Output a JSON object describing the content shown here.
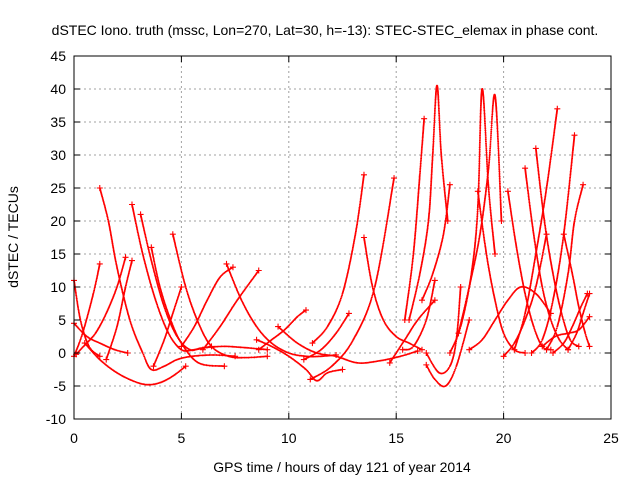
{
  "chart_data": {
    "type": "scatter",
    "title": "dSTEC Iono. truth (mssc, Lon=270, Lat=30, h=-13): STEC-STEC_elemax in phase cont.",
    "xlabel": "GPS time / hours of day 121 of year 2014",
    "ylabel": "dSTEC  / TECUs",
    "xlim": [
      0,
      25
    ],
    "ylim": [
      -10,
      45
    ],
    "xticks": [
      "0",
      "5",
      "10",
      "15",
      "20",
      "25"
    ],
    "yticks": [
      "-10",
      "-5",
      "0",
      "5",
      "10",
      "15",
      "20",
      "25",
      "30",
      "35",
      "40",
      "45"
    ],
    "grid": true,
    "marker": "+",
    "color": "#ff0000",
    "arcs": [
      {
        "x": [
          0.0,
          0.3,
          0.7,
          1.2
        ],
        "y": [
          11,
          5,
          1,
          -0.5
        ]
      },
      {
        "x": [
          0.0,
          0.6,
          1.2,
          1.9,
          2.5
        ],
        "y": [
          4.5,
          2.5,
          1.5,
          0.5,
          0
        ]
      },
      {
        "x": [
          0.0,
          0.4,
          0.9,
          1.2
        ],
        "y": [
          -0.5,
          3,
          9,
          13.5
        ]
      },
      {
        "x": [
          0.1,
          0.5,
          1.0,
          1.5,
          2.0,
          2.4
        ],
        "y": [
          -0.2,
          1.2,
          3,
          6,
          10,
          14.5
        ]
      },
      {
        "x": [
          1.2,
          1.6,
          2.0,
          2.6,
          3.2,
          3.6,
          4.2,
          4.8,
          5.5,
          6.5,
          7.5
        ],
        "y": [
          25,
          20,
          13,
          5,
          0,
          -2.5,
          -2,
          -1,
          -0.5,
          -0.3,
          -0.5
        ]
      },
      {
        "x": [
          1.5,
          2.0,
          2.4,
          2.7
        ],
        "y": [
          -1,
          4,
          10,
          14
        ]
      },
      {
        "x": [
          0.5,
          1.2,
          2.0,
          2.8,
          3.4,
          4.0,
          4.6,
          5.2
        ],
        "y": [
          1.5,
          -1,
          -3,
          -4.3,
          -4.8,
          -4.5,
          -3.5,
          -2
        ]
      },
      {
        "x": [
          2.7,
          3.2,
          3.8,
          4.4,
          5.0,
          5.6,
          6.4
        ],
        "y": [
          22.5,
          15,
          8,
          3,
          0.5,
          0.5,
          1
        ]
      },
      {
        "x": [
          3.1,
          3.6,
          4.2,
          4.8,
          5.4,
          6.0,
          7.0,
          8.0,
          9.0
        ],
        "y": [
          21,
          14,
          7,
          2.5,
          0.5,
          0.8,
          1,
          0.8,
          0.5
        ]
      },
      {
        "x": [
          3.6,
          4.0,
          4.5,
          5.0,
          5.8,
          7.0
        ],
        "y": [
          16,
          10,
          5,
          1.5,
          -1.5,
          -2
        ]
      },
      {
        "x": [
          4.6,
          5.2,
          5.8,
          6.4,
          7.2,
          8.0,
          9.0
        ],
        "y": [
          18,
          10,
          4.5,
          1,
          -0.5,
          -0.7,
          -0.5
        ]
      },
      {
        "x": [
          3.7,
          4.2,
          4.6,
          5.0
        ],
        "y": [
          -2,
          2,
          6,
          10
        ]
      },
      {
        "x": [
          5.0,
          5.6,
          6.2,
          6.8,
          7.4
        ],
        "y": [
          1,
          4,
          8,
          11.5,
          13
        ]
      },
      {
        "x": [
          7.1,
          7.8,
          8.5,
          9.2,
          10.0,
          10.8,
          11.5,
          12.2
        ],
        "y": [
          13.5,
          8,
          4,
          1.5,
          0,
          -0.5,
          -0.5,
          -0.3
        ]
      },
      {
        "x": [
          6.0,
          6.8,
          7.6,
          8.6
        ],
        "y": [
          0.5,
          4,
          8,
          12.5
        ]
      },
      {
        "x": [
          8.5,
          9.2,
          10.0,
          10.8,
          11.3,
          11.8,
          12.5
        ],
        "y": [
          2,
          1,
          -0.5,
          -2.5,
          -4.2,
          -3,
          -2.5
        ]
      },
      {
        "x": [
          8.6,
          9.2,
          9.8,
          10.4,
          10.8
        ],
        "y": [
          0.5,
          2,
          3.5,
          5.5,
          6.5
        ]
      },
      {
        "x": [
          9.5,
          10.4,
          11.3,
          12.2,
          13.2,
          14.2,
          15.2,
          16.0
        ],
        "y": [
          4,
          1.5,
          0,
          -0.5,
          -1.5,
          -1.2,
          -0.5,
          0.3
        ]
      },
      {
        "x": [
          11.1,
          11.8,
          12.5,
          13.1,
          13.5
        ],
        "y": [
          1.5,
          4,
          9,
          18,
          27
        ]
      },
      {
        "x": [
          11.0,
          12.0,
          13.0,
          14.0,
          14.9
        ],
        "y": [
          -4,
          -2,
          2,
          10,
          26.5
        ]
      },
      {
        "x": [
          10.7,
          11.5,
          12.2,
          12.8
        ],
        "y": [
          -1,
          0.5,
          3,
          6
        ]
      },
      {
        "x": [
          13.5,
          13.9,
          14.4,
          15.0,
          15.6,
          16.2
        ],
        "y": [
          17.5,
          10,
          5,
          2.5,
          1.5,
          0.5
        ]
      },
      {
        "x": [
          14.7,
          15.4,
          16.0,
          16.8
        ],
        "y": [
          -1.5,
          2,
          5,
          8
        ]
      },
      {
        "x": [
          15.4,
          15.8,
          16.1,
          16.3
        ],
        "y": [
          5,
          15,
          27,
          35.5
        ]
      },
      {
        "x": [
          15.3,
          15.8,
          16.4,
          16.8
        ],
        "y": [
          0.5,
          1,
          5,
          11
        ]
      },
      {
        "x": [
          15.6,
          16.1,
          16.5,
          16.7,
          16.9,
          17.1,
          17.4
        ],
        "y": [
          5,
          12,
          20,
          30,
          40.5,
          30,
          20
        ]
      },
      {
        "x": [
          16.4,
          17.0,
          17.5,
          17.8,
          18.0
        ],
        "y": [
          0,
          -3,
          -2,
          2,
          10
        ]
      },
      {
        "x": [
          16.2,
          16.7,
          17.2,
          17.5
        ],
        "y": [
          8,
          12,
          18,
          25.5
        ]
      },
      {
        "x": [
          16.4,
          16.8,
          17.3,
          17.8,
          18.4
        ],
        "y": [
          -1.8,
          -4,
          -5,
          -2,
          5
        ]
      },
      {
        "x": [
          17.5,
          18.0,
          18.5,
          18.8,
          19.0,
          19.3,
          19.6
        ],
        "y": [
          0,
          4,
          12,
          22,
          40,
          25,
          15
        ]
      },
      {
        "x": [
          17.9,
          18.4,
          18.9,
          19.3,
          19.6,
          19.9
        ],
        "y": [
          3,
          10,
          18,
          28,
          39,
          20
        ]
      },
      {
        "x": [
          18.8,
          19.2,
          19.6,
          20.0,
          20.5,
          21.0
        ],
        "y": [
          24.5,
          15,
          8,
          3,
          0.5,
          0
        ]
      },
      {
        "x": [
          18.4,
          19.0,
          19.6,
          20.2,
          20.8,
          21.5,
          22.2
        ],
        "y": [
          0.5,
          2,
          5,
          8,
          10,
          9,
          6
        ]
      },
      {
        "x": [
          20.2,
          20.6,
          21.0,
          21.4,
          21.8,
          22.2
        ],
        "y": [
          24.5,
          16,
          9,
          4,
          1,
          0.5
        ]
      },
      {
        "x": [
          20.0,
          20.5,
          21.0,
          21.5,
          22.0
        ],
        "y": [
          -0.5,
          1.5,
          5,
          10,
          18
        ]
      },
      {
        "x": [
          20.5,
          21.0,
          21.5,
          22.0,
          22.5
        ],
        "y": [
          0.5,
          6,
          15,
          25,
          37
        ]
      },
      {
        "x": [
          21.0,
          21.4,
          21.8,
          22.2,
          22.6,
          23.0
        ],
        "y": [
          28,
          18,
          10,
          5,
          2,
          0.5
        ]
      },
      {
        "x": [
          21.5,
          21.9,
          22.3,
          22.7,
          23.1,
          23.5
        ],
        "y": [
          31,
          20,
          12,
          6,
          2,
          1
        ]
      },
      {
        "x": [
          21.3,
          21.8,
          22.3,
          22.8,
          23.3
        ],
        "y": [
          0,
          2,
          8,
          18,
          33
        ]
      },
      {
        "x": [
          22.0,
          22.5,
          23.0,
          23.3,
          23.7
        ],
        "y": [
          0.5,
          4,
          12,
          20,
          25.5
        ]
      },
      {
        "x": [
          22.8,
          23.2,
          23.5,
          23.8,
          24.0
        ],
        "y": [
          18,
          12,
          7,
          3,
          1
        ]
      },
      {
        "x": [
          22.3,
          22.8,
          23.2,
          23.6,
          23.9
        ],
        "y": [
          0,
          1.5,
          4,
          7,
          9
        ]
      },
      {
        "x": [
          21.8,
          22.4,
          23.0,
          23.5,
          24.0
        ],
        "y": [
          1,
          2.5,
          3,
          3.5,
          5.5
        ]
      },
      {
        "x": [
          23.0,
          23.4,
          23.7,
          24.0
        ],
        "y": [
          0.5,
          3,
          6,
          9
        ]
      }
    ]
  }
}
